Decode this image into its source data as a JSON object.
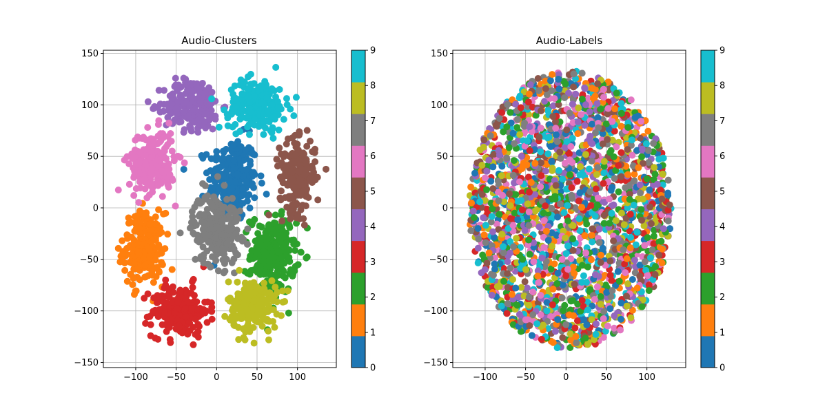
{
  "chart_data": [
    {
      "type": "scatter",
      "title": "Audio-Clusters",
      "xlabel": "",
      "ylabel": "",
      "xlim": [
        -140,
        148
      ],
      "ylim": [
        -155,
        153
      ],
      "xticks": [
        -100,
        -50,
        0,
        50,
        100
      ],
      "yticks": [
        -150,
        -100,
        -50,
        0,
        50,
        100,
        150
      ],
      "grid": true,
      "colorbar": {
        "ticks": [
          0,
          1,
          2,
          3,
          4,
          5,
          6,
          7,
          8,
          9
        ],
        "range": [
          0,
          9
        ]
      },
      "color_mapping": "cluster",
      "clusters": [
        {
          "label": 0,
          "cx": 20,
          "cy": 28,
          "rx": 30,
          "ry": 40,
          "n": 260
        },
        {
          "label": 1,
          "cx": -90,
          "cy": -40,
          "rx": 25,
          "ry": 35,
          "n": 230
        },
        {
          "label": 2,
          "cx": 70,
          "cy": -45,
          "rx": 28,
          "ry": 38,
          "n": 240
        },
        {
          "label": 3,
          "cx": -45,
          "cy": -100,
          "rx": 35,
          "ry": 25,
          "n": 220
        },
        {
          "label": 4,
          "cx": -30,
          "cy": 100,
          "rx": 35,
          "ry": 25,
          "n": 230
        },
        {
          "label": 5,
          "cx": 100,
          "cy": 30,
          "rx": 22,
          "ry": 35,
          "n": 210
        },
        {
          "label": 6,
          "cx": -80,
          "cy": 45,
          "rx": 28,
          "ry": 30,
          "n": 230
        },
        {
          "label": 7,
          "cx": 0,
          "cy": -20,
          "rx": 30,
          "ry": 35,
          "n": 240
        },
        {
          "label": 8,
          "cx": 45,
          "cy": -95,
          "rx": 30,
          "ry": 25,
          "n": 220
        },
        {
          "label": 9,
          "cx": 50,
          "cy": 100,
          "rx": 35,
          "ry": 25,
          "n": 230
        }
      ]
    },
    {
      "type": "scatter",
      "title": "Audio-Labels",
      "xlabel": "",
      "ylabel": "",
      "xlim": [
        -140,
        148
      ],
      "ylim": [
        -155,
        153
      ],
      "xticks": [
        -100,
        -50,
        0,
        50,
        100
      ],
      "yticks": [
        -150,
        -100,
        -50,
        0,
        50,
        100,
        150
      ],
      "grid": true,
      "colorbar": {
        "ticks": [
          0,
          1,
          2,
          3,
          4,
          5,
          6,
          7,
          8,
          9
        ],
        "range": [
          0,
          9
        ]
      },
      "color_mapping": "random-label"
    }
  ],
  "colors": [
    "#1f77b4",
    "#ff7f0e",
    "#2ca02c",
    "#d62728",
    "#9467bd",
    "#8c564b",
    "#e377c2",
    "#7f7f7f",
    "#bcbd22",
    "#17becf"
  ]
}
